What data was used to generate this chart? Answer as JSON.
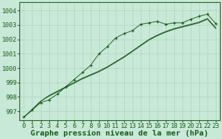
{
  "xlabel": "Graphe pression niveau de la mer (hPa)",
  "ylabel": "",
  "background_color": "#c8e8d8",
  "grid_color": "#b0d0c0",
  "line_color": "#1a5c1a",
  "x_ticks": [
    0,
    1,
    2,
    3,
    4,
    5,
    6,
    7,
    8,
    9,
    10,
    11,
    12,
    13,
    14,
    15,
    16,
    17,
    18,
    19,
    20,
    21,
    22,
    23
  ],
  "ylim": [
    996.4,
    1004.6
  ],
  "xlim": [
    -0.5,
    23.5
  ],
  "yticks": [
    997,
    998,
    999,
    1000,
    1001,
    1002,
    1003,
    1004
  ],
  "series": [
    {
      "x": [
        0,
        1,
        2,
        3,
        4,
        5,
        6,
        7,
        8,
        9,
        10,
        11,
        12,
        13,
        14,
        15,
        16,
        17,
        18,
        19,
        20,
        21,
        22,
        23
      ],
      "y": [
        996.6,
        997.1,
        997.6,
        997.8,
        998.2,
        998.7,
        999.2,
        999.7,
        1000.2,
        1001.0,
        1001.5,
        1002.1,
        1002.4,
        1002.6,
        1003.05,
        1003.15,
        1003.25,
        1003.05,
        1003.15,
        1003.15,
        1003.4,
        1003.6,
        1003.75,
        1003.1
      ],
      "marker": "+"
    },
    {
      "x": [
        0,
        1,
        2,
        3,
        4,
        5,
        6,
        7,
        8,
        9,
        10,
        11,
        12,
        13,
        14,
        15,
        16,
        17,
        18,
        19,
        20,
        21,
        22,
        23
      ],
      "y": [
        996.6,
        997.1,
        997.7,
        998.1,
        998.4,
        998.7,
        999.0,
        999.3,
        999.55,
        999.8,
        1000.1,
        1000.45,
        1000.8,
        1001.2,
        1001.6,
        1002.0,
        1002.3,
        1002.55,
        1002.75,
        1002.9,
        1003.05,
        1003.2,
        1003.45,
        1002.8
      ],
      "marker": null
    },
    {
      "x": [
        0,
        1,
        2,
        3,
        4,
        5,
        6,
        7,
        8,
        9,
        10,
        11,
        12,
        13,
        14,
        15,
        16,
        17,
        18,
        19,
        20,
        21,
        22,
        23
      ],
      "y": [
        996.6,
        997.15,
        997.7,
        998.05,
        998.35,
        998.65,
        998.95,
        999.25,
        999.5,
        999.75,
        1000.05,
        1000.4,
        1000.75,
        1001.15,
        1001.55,
        1001.95,
        1002.25,
        1002.5,
        1002.7,
        1002.85,
        1003.0,
        1003.15,
        1003.4,
        1002.75
      ],
      "marker": null
    }
  ],
  "xlabel_fontsize": 8,
  "tick_fontsize": 6.5,
  "fig_width": 3.2,
  "fig_height": 2.0,
  "dpi": 100
}
